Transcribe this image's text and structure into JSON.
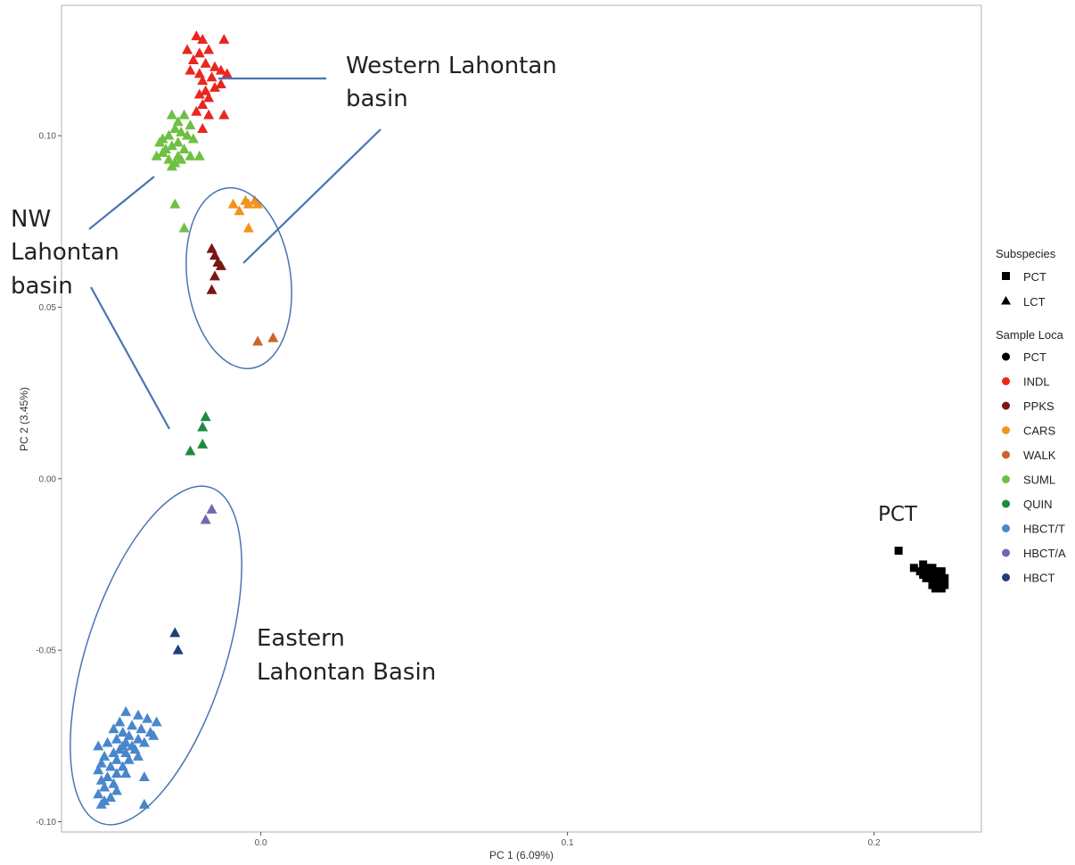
{
  "chart_data": {
    "type": "scatter",
    "title": "",
    "xlabel": "PC 1 (6.09%)",
    "ylabel": "PC 2 (3.45%)",
    "xlim": [
      -0.065,
      0.235
    ],
    "ylim": [
      -0.103,
      0.138
    ],
    "x_ticks": [
      {
        "value": 0.0,
        "label": "0.0"
      },
      {
        "value": 0.1,
        "label": "0.1"
      },
      {
        "value": 0.2,
        "label": "0.2"
      }
    ],
    "y_ticks": [
      {
        "value": -0.1,
        "label": "-0.10"
      },
      {
        "value": -0.05,
        "label": "-0.05"
      },
      {
        "value": 0.0,
        "label": "0.00"
      },
      {
        "value": 0.05,
        "label": "0.05"
      },
      {
        "value": 0.1,
        "label": "0.10"
      }
    ],
    "grid": false,
    "legend_position": "right",
    "legend": {
      "subspecies_title": "Subspecies",
      "subspecies": [
        {
          "label": "PCT",
          "shape": "square"
        },
        {
          "label": "LCT",
          "shape": "triangle"
        }
      ],
      "locations_title": "Sample Loca",
      "locations": [
        {
          "label": "PCT",
          "color": "#000000"
        },
        {
          "label": "INDL",
          "color": "#e8271f"
        },
        {
          "label": "PPKS",
          "color": "#7b1614"
        },
        {
          "label": "CARS",
          "color": "#f2931e"
        },
        {
          "label": "WALK",
          "color": "#c9652a"
        },
        {
          "label": "SUML",
          "color": "#6fbf44"
        },
        {
          "label": "QUIN",
          "color": "#1e8a3e"
        },
        {
          "label": "HBCT/T",
          "color": "#4a86cc"
        },
        {
          "label": "HBCT/A",
          "color": "#7a64b0"
        },
        {
          "label": "HBCT",
          "color": "#1f3f7a"
        }
      ]
    },
    "series": [
      {
        "name": "INDL",
        "shape": "triangle",
        "color": "#e8271f",
        "points": [
          [
            -0.021,
            0.129
          ],
          [
            -0.019,
            0.128
          ],
          [
            -0.012,
            0.128
          ],
          [
            -0.024,
            0.125
          ],
          [
            -0.02,
            0.124
          ],
          [
            -0.017,
            0.125
          ],
          [
            -0.022,
            0.122
          ],
          [
            -0.018,
            0.121
          ],
          [
            -0.015,
            0.12
          ],
          [
            -0.023,
            0.119
          ],
          [
            -0.02,
            0.118
          ],
          [
            -0.016,
            0.117
          ],
          [
            -0.013,
            0.119
          ],
          [
            -0.011,
            0.118
          ],
          [
            -0.019,
            0.116
          ],
          [
            -0.015,
            0.114
          ],
          [
            -0.018,
            0.113
          ],
          [
            -0.02,
            0.112
          ],
          [
            -0.017,
            0.111
          ],
          [
            -0.013,
            0.115
          ],
          [
            -0.019,
            0.109
          ],
          [
            -0.021,
            0.107
          ],
          [
            -0.017,
            0.106
          ],
          [
            -0.012,
            0.106
          ],
          [
            -0.019,
            0.102
          ]
        ]
      },
      {
        "name": "SUML",
        "shape": "triangle",
        "color": "#6fbf44",
        "points": [
          [
            -0.029,
            0.106
          ],
          [
            -0.025,
            0.106
          ],
          [
            -0.027,
            0.104
          ],
          [
            -0.023,
            0.103
          ],
          [
            -0.028,
            0.102
          ],
          [
            -0.026,
            0.101
          ],
          [
            -0.03,
            0.1
          ],
          [
            -0.024,
            0.1
          ],
          [
            -0.032,
            0.099
          ],
          [
            -0.027,
            0.098
          ],
          [
            -0.022,
            0.099
          ],
          [
            -0.029,
            0.097
          ],
          [
            -0.025,
            0.096
          ],
          [
            -0.031,
            0.096
          ],
          [
            -0.033,
            0.098
          ],
          [
            -0.027,
            0.094
          ],
          [
            -0.023,
            0.094
          ],
          [
            -0.03,
            0.093
          ],
          [
            -0.028,
            0.092
          ],
          [
            -0.02,
            0.094
          ],
          [
            -0.032,
            0.095
          ],
          [
            -0.034,
            0.094
          ],
          [
            -0.029,
            0.091
          ],
          [
            -0.026,
            0.093
          ],
          [
            -0.028,
            0.08
          ],
          [
            -0.025,
            0.073
          ]
        ]
      },
      {
        "name": "CARS",
        "shape": "triangle",
        "color": "#f2931e",
        "points": [
          [
            -0.005,
            0.081
          ],
          [
            -0.002,
            0.081
          ],
          [
            -0.004,
            0.08
          ],
          [
            -0.001,
            0.08
          ],
          [
            -0.009,
            0.08
          ],
          [
            -0.007,
            0.078
          ],
          [
            -0.004,
            0.073
          ]
        ]
      },
      {
        "name": "PPKS",
        "shape": "triangle",
        "color": "#7b1614",
        "points": [
          [
            -0.016,
            0.067
          ],
          [
            -0.015,
            0.065
          ],
          [
            -0.014,
            0.063
          ],
          [
            -0.013,
            0.062
          ],
          [
            -0.015,
            0.059
          ],
          [
            -0.016,
            0.055
          ]
        ]
      },
      {
        "name": "WALK",
        "shape": "triangle",
        "color": "#c9652a",
        "points": [
          [
            -0.001,
            0.04
          ],
          [
            0.004,
            0.041
          ]
        ]
      },
      {
        "name": "QUIN",
        "shape": "triangle",
        "color": "#1e8a3e",
        "points": [
          [
            -0.018,
            0.018
          ],
          [
            -0.019,
            0.015
          ],
          [
            -0.019,
            0.01
          ],
          [
            -0.023,
            0.008
          ]
        ]
      },
      {
        "name": "HBCT/A",
        "shape": "triangle",
        "color": "#7a64b0",
        "points": [
          [
            -0.016,
            -0.009
          ],
          [
            -0.018,
            -0.012
          ]
        ]
      },
      {
        "name": "HBCT",
        "shape": "triangle",
        "color": "#1f3f7a",
        "points": [
          [
            -0.028,
            -0.045
          ],
          [
            -0.027,
            -0.05
          ]
        ]
      },
      {
        "name": "HBCT/T",
        "shape": "triangle",
        "color": "#4a86cc",
        "points": [
          [
            -0.044,
            -0.068
          ],
          [
            -0.04,
            -0.069
          ],
          [
            -0.046,
            -0.071
          ],
          [
            -0.037,
            -0.07
          ],
          [
            -0.042,
            -0.072
          ],
          [
            -0.034,
            -0.071
          ],
          [
            -0.039,
            -0.073
          ],
          [
            -0.048,
            -0.073
          ],
          [
            -0.045,
            -0.074
          ],
          [
            -0.036,
            -0.074
          ],
          [
            -0.043,
            -0.075
          ],
          [
            -0.04,
            -0.076
          ],
          [
            -0.047,
            -0.076
          ],
          [
            -0.044,
            -0.077
          ],
          [
            -0.038,
            -0.077
          ],
          [
            -0.05,
            -0.077
          ],
          [
            -0.042,
            -0.078
          ],
          [
            -0.046,
            -0.079
          ],
          [
            -0.053,
            -0.078
          ],
          [
            -0.048,
            -0.08
          ],
          [
            -0.044,
            -0.08
          ],
          [
            -0.04,
            -0.081
          ],
          [
            -0.051,
            -0.081
          ],
          [
            -0.047,
            -0.082
          ],
          [
            -0.043,
            -0.082
          ],
          [
            -0.052,
            -0.083
          ],
          [
            -0.049,
            -0.084
          ],
          [
            -0.045,
            -0.084
          ],
          [
            -0.053,
            -0.085
          ],
          [
            -0.047,
            -0.086
          ],
          [
            -0.05,
            -0.087
          ],
          [
            -0.044,
            -0.086
          ],
          [
            -0.052,
            -0.088
          ],
          [
            -0.048,
            -0.089
          ],
          [
            -0.051,
            -0.09
          ],
          [
            -0.047,
            -0.091
          ],
          [
            -0.053,
            -0.092
          ],
          [
            -0.049,
            -0.093
          ],
          [
            -0.051,
            -0.094
          ],
          [
            -0.052,
            -0.095
          ],
          [
            -0.038,
            -0.087
          ],
          [
            -0.038,
            -0.095
          ],
          [
            -0.035,
            -0.075
          ],
          [
            -0.041,
            -0.079
          ],
          [
            -0.045,
            -0.078
          ]
        ]
      },
      {
        "name": "PCT",
        "shape": "square",
        "color": "#000000",
        "points": [
          [
            0.208,
            -0.021
          ],
          [
            0.213,
            -0.026
          ],
          [
            0.215,
            -0.027
          ],
          [
            0.216,
            -0.025
          ],
          [
            0.217,
            -0.026
          ],
          [
            0.218,
            -0.027
          ],
          [
            0.219,
            -0.026
          ],
          [
            0.22,
            -0.027
          ],
          [
            0.221,
            -0.028
          ],
          [
            0.222,
            -0.027
          ],
          [
            0.218,
            -0.028
          ],
          [
            0.219,
            -0.029
          ],
          [
            0.22,
            -0.03
          ],
          [
            0.221,
            -0.031
          ],
          [
            0.222,
            -0.03
          ],
          [
            0.223,
            -0.029
          ],
          [
            0.219,
            -0.031
          ],
          [
            0.22,
            -0.032
          ],
          [
            0.217,
            -0.029
          ],
          [
            0.222,
            -0.032
          ],
          [
            0.216,
            -0.028
          ],
          [
            0.223,
            -0.031
          ]
        ]
      }
    ],
    "annotations": {
      "western": [
        "Western Lahontan",
        "basin"
      ],
      "nw": [
        "NW",
        "Lahontan",
        "basin"
      ],
      "eastern": [
        "Eastern",
        "Lahontan Basin"
      ],
      "pct": "PCT"
    }
  }
}
